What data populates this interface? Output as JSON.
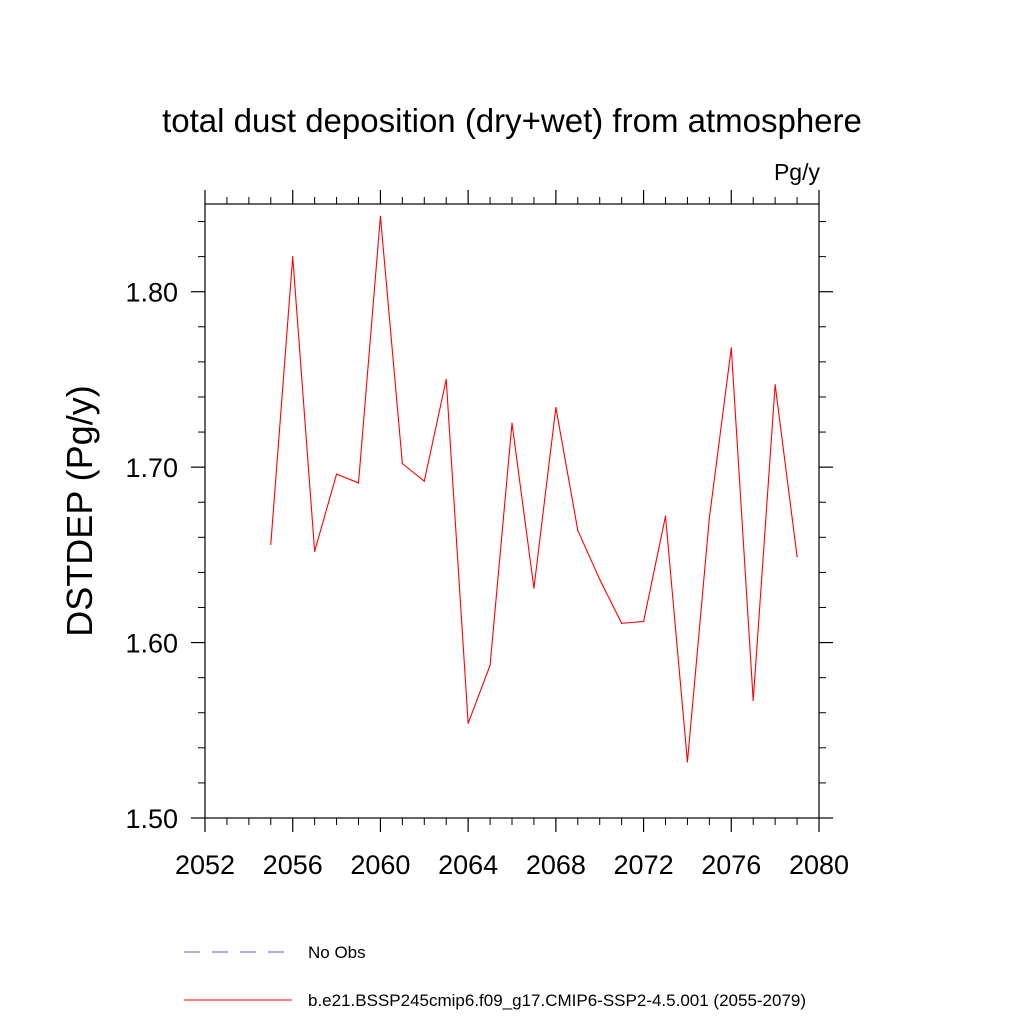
{
  "chart_data": {
    "type": "line",
    "title": "total dust deposition (dry+wet) from atmosphere",
    "units": "Pg/y",
    "ylabel": "DSTDEP  (Pg/y)",
    "xlabel": "",
    "xlim": [
      2052,
      2080
    ],
    "ylim": [
      1.5,
      1.85
    ],
    "x_ticks": [
      2052,
      2056,
      2060,
      2064,
      2068,
      2072,
      2076,
      2080
    ],
    "x_tick_labels": [
      "2052",
      "2056",
      "2060",
      "2064",
      "2068",
      "2072",
      "2076",
      "2080"
    ],
    "y_ticks": [
      1.5,
      1.6,
      1.7,
      1.8
    ],
    "y_tick_labels": [
      "1.50",
      "1.60",
      "1.70",
      "1.80"
    ],
    "x_minor_step": 1,
    "y_minor_step": 0.02,
    "grid": false,
    "legend_position": "bottom",
    "series": [
      {
        "name": "No Obs",
        "color": "#6a5acd",
        "dash": "dashed",
        "x": [],
        "values": []
      },
      {
        "name": "b.e21.BSSP245cmip6.f09_g17.CMIP6-SSP2-4.5.001 (2055-2079)",
        "color": "#ff0000",
        "dash": "solid",
        "x": [
          2055,
          2056,
          2057,
          2058,
          2059,
          2060,
          2061,
          2062,
          2063,
          2064,
          2065,
          2066,
          2067,
          2068,
          2069,
          2070,
          2071,
          2072,
          2073,
          2074,
          2075,
          2076,
          2077,
          2078,
          2079
        ],
        "values": [
          1.656,
          1.82,
          1.652,
          1.696,
          1.691,
          1.843,
          1.702,
          1.692,
          1.75,
          1.554,
          1.587,
          1.725,
          1.631,
          1.734,
          1.664,
          1.636,
          1.611,
          1.612,
          1.672,
          1.532,
          1.671,
          1.768,
          1.567,
          1.747,
          1.649
        ]
      }
    ]
  }
}
